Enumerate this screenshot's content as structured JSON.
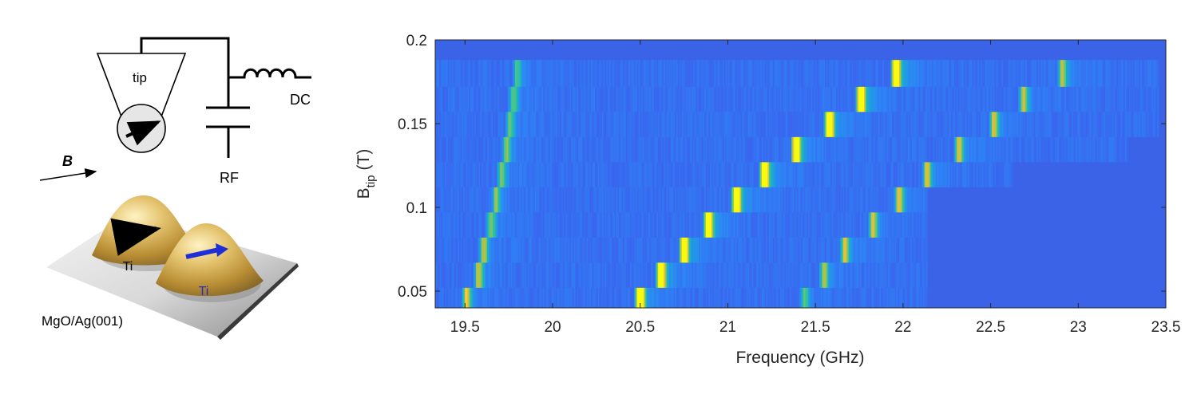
{
  "schematic": {
    "tip_label": "tip",
    "dc_label": "DC",
    "rf_label": "RF",
    "field_label": "B",
    "atom1_label": "Ti",
    "atom2_label": "Ti",
    "substrate_label": "MgO/Ag(001)",
    "colors": {
      "gold": "#c9a54a",
      "blue_arrow": "#1f2fd6",
      "black_arrow": "#000000"
    }
  },
  "chart_data": {
    "type": "heatmap",
    "title": "",
    "xlabel": "Frequency (GHz)",
    "ylabel": "B",
    "ylabel_subscript": "tip",
    "ylabel_unit": "(T)",
    "xlim": [
      19.33,
      23.5
    ],
    "ylim": [
      0.04,
      0.2
    ],
    "xticks": [
      19.5,
      20,
      20.5,
      21,
      21.5,
      22,
      22.5,
      23,
      23.5
    ],
    "xtick_labels": [
      "19.5",
      "20",
      "20.5",
      "21",
      "21.5",
      "22",
      "22.5",
      "23",
      "23.5"
    ],
    "yticks": [
      0.05,
      0.1,
      0.15,
      0.2
    ],
    "ytick_labels": [
      "0.05",
      "0.1",
      "0.15",
      "0.2"
    ],
    "colormap": "parula",
    "background_color": "#3b63e8",
    "rows": [
      {
        "b": 0.045,
        "scan_end": 22.13,
        "peaks": [
          {
            "f": 19.49,
            "amp": 0.55
          },
          {
            "f": 20.48,
            "amp": 0.92
          },
          {
            "f": 21.42,
            "amp": 0.35
          }
        ]
      },
      {
        "b": 0.06,
        "scan_end": 22.13,
        "peaks": [
          {
            "f": 19.56,
            "amp": 0.45
          },
          {
            "f": 20.6,
            "amp": 0.9
          },
          {
            "f": 21.53,
            "amp": 0.45
          }
        ]
      },
      {
        "b": 0.075,
        "scan_end": 22.13,
        "peaks": [
          {
            "f": 19.59,
            "amp": 0.45
          },
          {
            "f": 20.73,
            "amp": 0.9
          },
          {
            "f": 21.65,
            "amp": 0.5
          }
        ]
      },
      {
        "b": 0.09,
        "scan_end": 22.13,
        "peaks": [
          {
            "f": 19.63,
            "amp": 0.4
          },
          {
            "f": 20.87,
            "amp": 0.92
          },
          {
            "f": 21.81,
            "amp": 0.5
          }
        ]
      },
      {
        "b": 0.105,
        "scan_end": 22.13,
        "peaks": [
          {
            "f": 19.66,
            "amp": 0.4
          },
          {
            "f": 21.03,
            "amp": 0.95
          },
          {
            "f": 21.96,
            "amp": 0.5
          }
        ]
      },
      {
        "b": 0.12,
        "scan_end": 22.62,
        "peaks": [
          {
            "f": 19.69,
            "amp": 0.38
          },
          {
            "f": 21.19,
            "amp": 0.95
          },
          {
            "f": 22.12,
            "amp": 0.5
          }
        ]
      },
      {
        "b": 0.135,
        "scan_end": 23.28,
        "peaks": [
          {
            "f": 19.72,
            "amp": 0.38
          },
          {
            "f": 21.37,
            "amp": 0.9
          },
          {
            "f": 22.3,
            "amp": 0.5
          }
        ]
      },
      {
        "b": 0.15,
        "scan_end": 23.45,
        "peaks": [
          {
            "f": 19.74,
            "amp": 0.36
          },
          {
            "f": 21.56,
            "amp": 0.92
          },
          {
            "f": 22.5,
            "amp": 0.5
          }
        ]
      },
      {
        "b": 0.165,
        "scan_end": 23.45,
        "peaks": [
          {
            "f": 19.76,
            "amp": 0.34
          },
          {
            "f": 21.74,
            "amp": 0.92
          },
          {
            "f": 22.67,
            "amp": 0.45
          }
        ]
      },
      {
        "b": 0.18,
        "scan_end": 23.45,
        "peaks": [
          {
            "f": 19.78,
            "amp": 0.32
          },
          {
            "f": 21.94,
            "amp": 0.95
          },
          {
            "f": 22.89,
            "amp": 0.48
          }
        ]
      }
    ]
  }
}
